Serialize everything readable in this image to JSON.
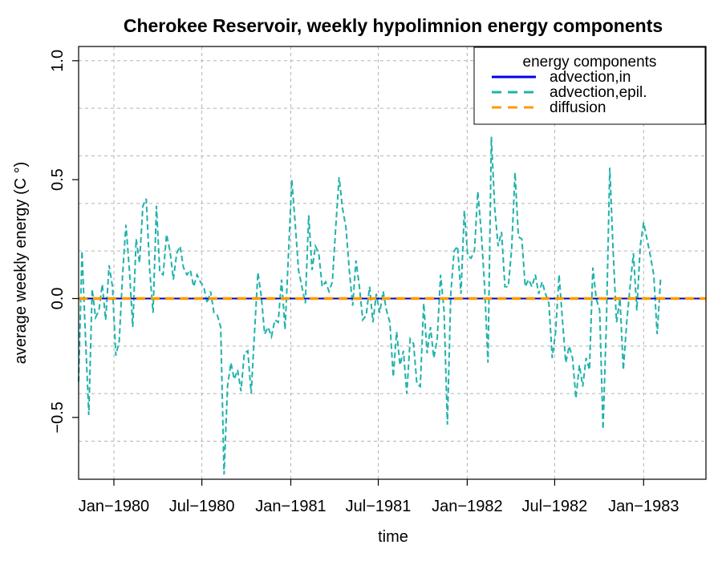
{
  "chart_data": {
    "type": "line",
    "title": "Cherokee Reservoir, weekly hypolimnion energy components",
    "xlabel": "time",
    "ylabel": "average weekly energy (C °)",
    "xlim": [
      "1979-10-20",
      "1983-05-10"
    ],
    "ylim": [
      -0.76,
      1.06
    ],
    "grid": true,
    "x_ticks": [
      "1980-01-01",
      "1980-07-01",
      "1981-01-01",
      "1981-07-01",
      "1982-01-01",
      "1982-07-01",
      "1983-01-01"
    ],
    "x_tick_labels": [
      "Jan−1980",
      "Jul−1980",
      "Jan−1981",
      "Jul−1981",
      "Jan−1982",
      "Jul−1982",
      "Jan−1983"
    ],
    "y_ticks": [
      -0.5,
      0.0,
      0.5,
      1.0
    ],
    "y_tick_labels": [
      "−0.5",
      "0.0",
      "0.5",
      "1.0"
    ],
    "legend": {
      "title": "energy components",
      "position": "top-right"
    },
    "series": [
      {
        "name": "advection,in",
        "color": "#0000ee",
        "style": "solid",
        "x_start": "1979-10-20",
        "x_step_days": 7,
        "values": [
          0,
          0,
          0,
          0,
          0,
          0,
          0,
          0,
          0,
          0,
          0,
          0,
          0,
          0,
          0,
          0,
          0,
          0,
          0,
          0,
          0,
          0,
          0,
          0,
          0,
          0,
          0,
          0,
          0,
          0,
          0,
          0,
          0,
          0,
          0,
          0,
          0,
          0,
          0,
          0,
          0,
          0,
          0,
          0,
          0,
          0,
          0,
          0,
          0,
          0,
          0,
          0,
          0,
          0,
          0,
          0,
          0,
          0,
          0,
          0,
          0,
          0,
          0,
          0,
          0,
          0,
          0,
          0,
          0,
          0,
          0,
          0,
          0,
          0,
          0,
          0,
          0,
          0,
          0,
          0,
          0,
          0,
          0,
          0,
          0,
          0,
          0,
          0,
          0,
          0,
          0,
          0,
          0,
          0,
          0,
          0,
          0,
          0,
          0,
          0,
          0,
          0,
          0,
          0,
          0,
          0,
          0,
          0,
          0,
          0,
          0,
          0,
          0,
          0,
          0,
          0,
          0,
          0,
          0,
          0,
          0,
          0,
          0,
          0,
          0,
          0,
          0,
          0,
          0,
          0,
          0,
          0,
          0,
          0,
          0,
          0,
          0,
          0,
          0,
          0,
          0,
          0,
          0,
          0,
          0,
          0,
          0,
          0,
          0,
          0,
          0,
          0,
          0,
          0,
          0,
          0,
          0,
          0,
          0,
          0,
          0,
          0,
          0,
          0,
          0,
          0,
          0,
          0,
          0,
          0,
          0,
          0,
          0,
          0,
          0,
          0,
          0,
          0,
          0,
          0,
          0,
          0,
          0,
          0,
          0,
          0,
          0,
          0,
          0
        ]
      },
      {
        "name": "advection,epil.",
        "color": "#20b2aa",
        "style": "dashed",
        "x_start": "1979-10-20",
        "x_step_days": 7,
        "values": [
          -0.35,
          0.2,
          -0.15,
          -0.49,
          0.04,
          -0.08,
          -0.05,
          0.06,
          -0.09,
          0.14,
          0.05,
          -0.24,
          -0.18,
          0.1,
          0.31,
          0.12,
          -0.12,
          0.25,
          0.15,
          0.39,
          0.42,
          0.12,
          -0.06,
          0.39,
          0.11,
          0.1,
          0.27,
          0.2,
          0.08,
          0.19,
          0.22,
          0.13,
          0.1,
          0.12,
          0.05,
          0.1,
          0.07,
          0.05,
          -0.02,
          0.03,
          -0.06,
          -0.07,
          -0.12,
          -0.74,
          -0.37,
          -0.27,
          -0.34,
          -0.3,
          -0.39,
          -0.23,
          -0.22,
          -0.4,
          -0.14,
          0.11,
          0.01,
          -0.15,
          -0.12,
          -0.16,
          -0.09,
          -0.1,
          0.08,
          -0.13,
          0.18,
          0.5,
          0.32,
          0.12,
          0.05,
          -0.02,
          0.35,
          0.12,
          0.22,
          0.19,
          0.05,
          0.07,
          0.03,
          0.07,
          0.3,
          0.51,
          0.38,
          0.3,
          0.12,
          -0.03,
          0.16,
          0.05,
          -0.09,
          -0.07,
          0.05,
          -0.1,
          0.02,
          -0.06,
          0.03,
          -0.05,
          -0.1,
          -0.33,
          -0.14,
          -0.28,
          -0.22,
          -0.4,
          -0.17,
          -0.19,
          -0.36,
          -0.37,
          -0.02,
          -0.23,
          -0.12,
          -0.25,
          -0.17,
          0.1,
          -0.05,
          -0.53,
          0.02,
          0.2,
          0.22,
          0.02,
          0.37,
          0.18,
          0.17,
          0.2,
          0.45,
          0.28,
          0.05,
          -0.27,
          0.68,
          0.38,
          0.22,
          0.28,
          0.05,
          0.05,
          0.21,
          0.53,
          0.26,
          0.25,
          0.05,
          0.08,
          0.05,
          0.1,
          0.02,
          0.07,
          0.02,
          -0.02,
          -0.25,
          -0.14,
          0.1,
          -0.09,
          -0.27,
          -0.2,
          -0.25,
          -0.42,
          -0.28,
          -0.37,
          -0.25,
          -0.3,
          0.13,
          0.0,
          -0.05,
          -0.55,
          -0.1,
          0.55,
          0.2,
          -0.1,
          0.0,
          -0.3,
          -0.1,
          0.05,
          0.19,
          -0.05,
          0.22,
          0.32,
          0.25,
          0.18,
          0.1,
          -0.15,
          0.08
        ]
      },
      {
        "name": "diffusion",
        "color": "#ff9900",
        "style": "dashed",
        "x_start": "1979-10-20",
        "x_step_days": 7,
        "values": [
          0,
          0,
          0,
          0,
          0,
          0,
          0,
          0,
          0,
          0,
          0,
          0,
          0,
          0,
          0,
          0,
          0,
          0,
          0,
          0,
          0,
          0,
          0,
          0,
          0,
          0,
          0,
          0,
          0,
          0,
          0,
          0,
          0,
          0,
          0,
          0,
          0,
          0,
          0,
          0,
          0,
          0,
          0,
          0,
          0,
          0,
          0,
          0,
          0,
          0,
          0,
          0,
          0,
          0,
          0,
          0,
          0,
          0,
          0,
          0,
          0,
          0,
          0,
          0,
          0,
          0,
          0,
          0,
          0,
          0,
          0,
          0,
          0,
          0,
          0,
          0,
          0,
          0,
          0,
          0,
          0,
          0,
          0,
          0,
          0,
          0,
          0,
          0,
          0,
          0,
          0,
          0,
          0,
          0,
          0,
          0,
          0,
          0,
          0,
          0,
          0,
          0,
          0,
          0,
          0,
          0,
          0,
          0,
          0,
          0,
          0,
          0,
          0,
          0,
          0,
          0,
          0,
          0,
          0,
          0,
          0,
          0,
          0,
          0,
          0,
          0,
          0,
          0,
          0,
          0,
          0,
          0,
          0,
          0,
          0,
          0,
          0,
          0,
          0,
          0,
          0,
          0,
          0,
          0,
          0,
          0,
          0,
          0,
          0,
          0,
          0,
          0,
          0,
          0,
          0,
          0,
          0,
          0,
          0,
          0,
          0,
          0,
          0,
          0,
          0,
          0,
          0,
          0,
          0,
          0,
          0,
          0,
          0,
          0,
          0,
          0,
          0,
          0,
          0,
          0,
          0,
          0,
          0,
          0,
          0,
          0,
          0,
          0,
          0
        ]
      }
    ]
  }
}
